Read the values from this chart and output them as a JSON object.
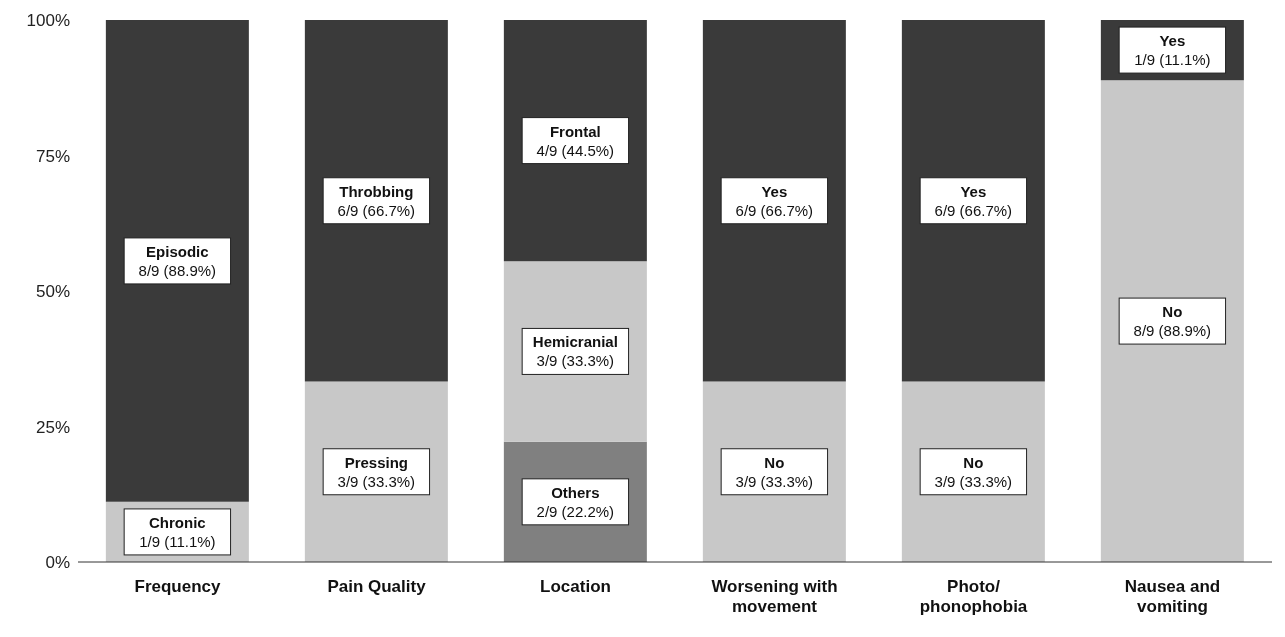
{
  "chart_data": {
    "type": "bar",
    "stacked": true,
    "categories": [
      "Frequency",
      "Pain Quality",
      "Location",
      "Worsening with movement",
      "Photo/ phonophobia",
      "Nausea and vomiting"
    ],
    "series": [
      {
        "colors": [
          "#c8c8c8",
          "#c8c8c8",
          "#808080",
          "#c8c8c8",
          "#c8c8c8",
          "#c8c8c8"
        ],
        "values": [
          11.1,
          33.3,
          22.2,
          33.3,
          33.3,
          88.9
        ],
        "value_labels": [
          "Chronic\n1/9 (11.1%)",
          "Pressing\n3/9 (33.3%)",
          "Others\n2/9 (22.2%)",
          "No\n3/9 (33.3%)",
          "No\n3/9 (33.3%)",
          "No\n8/9 (88.9%)"
        ]
      },
      {
        "colors": [
          null,
          null,
          "#c8c8c8",
          null,
          null,
          null
        ],
        "values": [
          null,
          null,
          33.3,
          null,
          null,
          null
        ],
        "value_labels": [
          null,
          null,
          "Hemicranial\n3/9 (33.3%)",
          null,
          null,
          null
        ]
      },
      {
        "colors": [
          "#3a3a3a",
          "#3a3a3a",
          "#3a3a3a",
          "#3a3a3a",
          "#3a3a3a",
          "#3a3a3a"
        ],
        "values": [
          88.9,
          66.7,
          44.5,
          66.7,
          66.7,
          11.1
        ],
        "value_labels": [
          "Episodic\n8/9 (88.9%)",
          "Throbbing\n6/9 (66.7%)",
          "Frontal\n4/9 (44.5%)",
          "Yes\n6/9 (66.7%)",
          "Yes\n6/9 (66.7%)",
          "Yes\n1/9 (11.1%)"
        ]
      }
    ],
    "ylim": [
      0,
      100
    ],
    "yticks": [
      {
        "value": 0,
        "label": "0%"
      },
      {
        "value": 25,
        "label": "25%"
      },
      {
        "value": 50,
        "label": "50%"
      },
      {
        "value": 75,
        "label": "75%"
      },
      {
        "value": 100,
        "label": "100%"
      }
    ],
    "grid": false,
    "legend": false
  }
}
